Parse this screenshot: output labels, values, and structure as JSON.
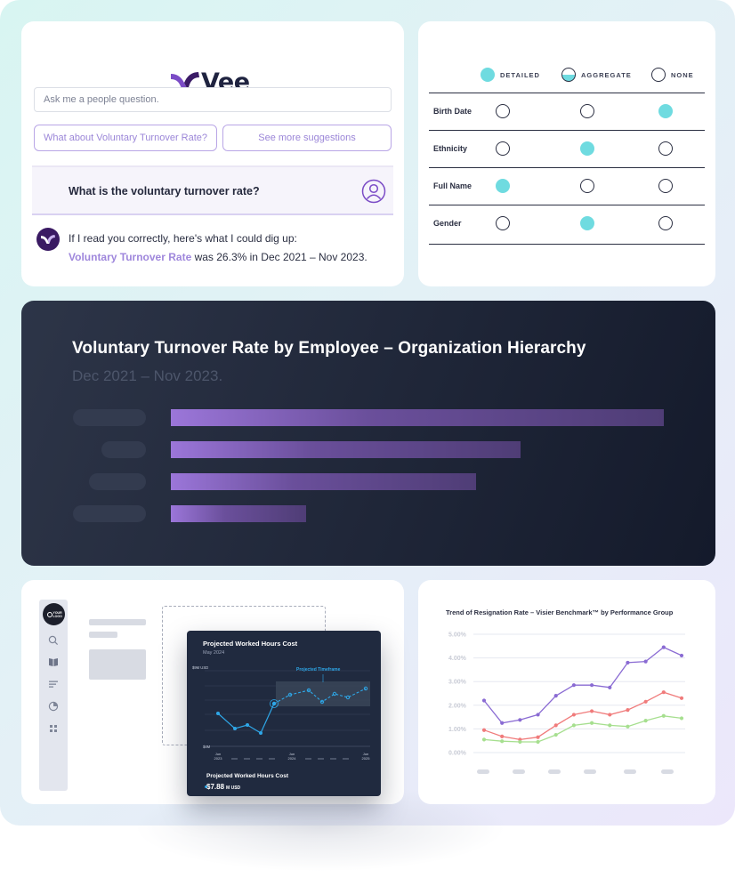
{
  "colors": {
    "brand_purple": "#7b4cc6",
    "accent_teal": "#6fdbe0",
    "lavender_text": "#9f87dc",
    "dark_card": "#1f2638",
    "chart_blue": "#2ea7e8"
  },
  "vee": {
    "logo_text": "Vee",
    "logo_icon": "vee-v-mark-icon",
    "input_placeholder": "Ask me a people question.",
    "suggestion_1": "What about Voluntary Turnover Rate?",
    "suggestion_2": "See more suggestions",
    "question": "What is the voluntary turnover rate?",
    "user_icon": "user-circle-icon",
    "answer_intro": "If I read you correctly, here's what I could dig up:",
    "answer_metric": "Voluntary Turnover Rate",
    "answer_rest": " was 26.3% in Dec 2021 – Nov 2023."
  },
  "privacy": {
    "legend": [
      "DETAILED",
      "AGGREGATE",
      "NONE"
    ],
    "rows": [
      {
        "label": "Birth Date",
        "selection": "NONE"
      },
      {
        "label": "Ethnicity",
        "selection": "AGGREGATE"
      },
      {
        "label": "Full Name",
        "selection": "DETAILED"
      },
      {
        "label": "Gender",
        "selection": "AGGREGATE"
      }
    ]
  },
  "org_chart": {
    "title": "Voluntary Turnover Rate by Employee – Organization Hierarchy",
    "subtitle": "Dec 2021 – Nov 2023.",
    "bar_fractions": [
      1.0,
      0.71,
      0.62,
      0.274
    ]
  },
  "dashboard": {
    "logo_text": "YOUR LOGO",
    "sidebar_icons": [
      "search-icon",
      "book-icon",
      "list-icon",
      "chart-pie-icon",
      "grid-icon"
    ],
    "card_title": "Projected Worked Hours Cost",
    "card_date": "May 2024",
    "projected_label": "Projected Timeframe",
    "y_top_label": "$9M USD",
    "y_bottom_label": "$4M",
    "x_labels": [
      "Jun\n2023",
      "Jun\n2024",
      "Jun\n2025"
    ],
    "footer_label": "Projected Worked Hours Cost",
    "footer_value": "$7.88",
    "footer_unit": "M USD"
  },
  "chart_data": {
    "type": "line",
    "title": "Trend of Resignation Rate – Visier Benchmark™ by Performance Group",
    "y_ticks": [
      "5.00%",
      "4.00%",
      "3.00%",
      "2.00%",
      "1.00%",
      "0.00%"
    ],
    "ylim": [
      0,
      5
    ],
    "x_count": 15,
    "series": [
      {
        "color": "#8a6bd3",
        "values": [
          2.2,
          1.25,
          1.38,
          1.6,
          2.4,
          2.85,
          2.85,
          2.75,
          3.8,
          3.85,
          4.45,
          4.1
        ]
      },
      {
        "color": "#f07b7b",
        "values": [
          0.95,
          0.68,
          0.55,
          0.65,
          1.15,
          1.6,
          1.75,
          1.6,
          1.8,
          2.15,
          2.55,
          2.3
        ]
      },
      {
        "color": "#a6df8f",
        "values": [
          0.55,
          0.48,
          0.45,
          0.45,
          0.75,
          1.15,
          1.25,
          1.15,
          1.1,
          1.35,
          1.55,
          1.45
        ]
      }
    ],
    "legend": "none",
    "grid": true
  }
}
